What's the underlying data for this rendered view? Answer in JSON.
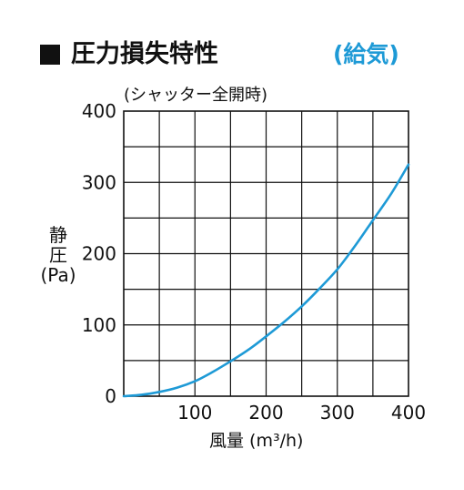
{
  "title": "圧力損失特性",
  "mode_label": "(給気)",
  "chart_data": {
    "type": "line",
    "subtitle": "(シャッター全開時)",
    "ylabel_lines": [
      "静",
      "圧",
      "(Pa)"
    ],
    "xlabel": "風量 (m³/h)",
    "xlim": [
      0,
      400
    ],
    "ylim": [
      0,
      400
    ],
    "x_ticks": [
      100,
      200,
      300,
      400
    ],
    "y_ticks": [
      0,
      100,
      200,
      300,
      400
    ],
    "grid": true,
    "line_color": "#1e9ad6",
    "series": [
      {
        "x": [
          0,
          25,
          50,
          75,
          100,
          125,
          150,
          175,
          200,
          225,
          250,
          275,
          300,
          325,
          350,
          375,
          400
        ],
        "y": [
          0,
          2,
          6,
          12,
          21,
          34,
          49,
          65,
          84,
          104,
          126,
          151,
          178,
          211,
          247,
          283,
          325
        ]
      }
    ]
  }
}
